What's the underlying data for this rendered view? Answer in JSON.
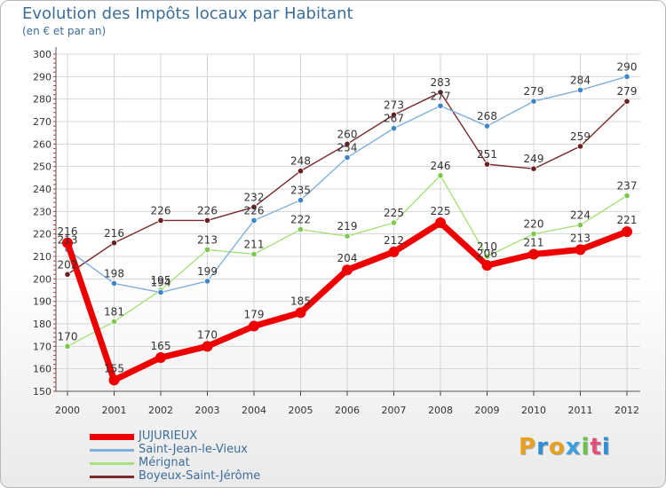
{
  "header": {
    "title": "Evolution des Impôts locaux par Habitant",
    "subtitle": "(en € et par an)"
  },
  "brand": {
    "letters": [
      "P",
      "r",
      "o",
      "x",
      "i",
      "t",
      "i"
    ],
    "colors": [
      "#e8a020",
      "#2c8fd6",
      "#e8a020",
      "#3aa0e0",
      "#6cc04a",
      "#e0507a",
      "#2c8fd6"
    ]
  },
  "chart_data": {
    "type": "line",
    "title": "Evolution des Impôts locaux par Habitant",
    "subtitle": "(en € et par an)",
    "xlabel": "",
    "ylabel": "",
    "categories": [
      "2000",
      "2001",
      "2002",
      "2003",
      "2004",
      "2005",
      "2006",
      "2007",
      "2008",
      "2009",
      "2010",
      "2011",
      "2012"
    ],
    "ylim": [
      150,
      300
    ],
    "yticks": [
      150,
      160,
      170,
      180,
      190,
      200,
      210,
      220,
      230,
      240,
      250,
      260,
      270,
      280,
      290,
      300
    ],
    "grid": true,
    "legend_position": "bottom-left",
    "series": [
      {
        "name": "Boyeux-Saint-Jérôme",
        "color": "#7a2a2a",
        "point_color": "#6b1f1f",
        "values": [
          202,
          216,
          226,
          226,
          232,
          248,
          260,
          273,
          283,
          251,
          249,
          259,
          279
        ],
        "labels": [
          "202",
          "216",
          "226",
          "226",
          "232",
          "248",
          "260",
          "273",
          "283",
          "251",
          "249",
          "259",
          "279"
        ]
      },
      {
        "name": "Mérignat",
        "color": "#a8e07a",
        "point_color": "#7dc84e",
        "values": [
          170,
          181,
          195,
          213,
          211,
          222,
          219,
          225,
          246,
          210,
          220,
          224,
          237
        ],
        "labels": [
          "170",
          "181",
          "195",
          "213",
          "211",
          "222",
          "219",
          "225",
          "246",
          "210",
          "220",
          "224",
          "237"
        ]
      },
      {
        "name": "Saint-Jean-le-Vieux",
        "color": "#7fb0dc",
        "point_color": "#3e86c8",
        "values": [
          213,
          198,
          194,
          199,
          226,
          235,
          254,
          267,
          277,
          268,
          279,
          284,
          290
        ],
        "labels": [
          "213",
          "198",
          "194",
          "199",
          "226",
          "235",
          "254",
          "267",
          "277",
          "268",
          "279",
          "284",
          "290"
        ]
      },
      {
        "name": "JUJURIEUX",
        "color": "#ee0000",
        "point_color": "#ee0000",
        "values": [
          216,
          155,
          165,
          170,
          179,
          185,
          204,
          212,
          225,
          206,
          211,
          213,
          221
        ],
        "labels": [
          "216",
          "155",
          "165",
          "170",
          "179",
          "185",
          "204",
          "212",
          "225",
          "206",
          "211",
          "213",
          "221"
        ]
      }
    ],
    "legend_order": [
      "JUJURIEUX",
      "Saint-Jean-le-Vieux",
      "Mérignat",
      "Boyeux-Saint-Jérôme"
    ]
  }
}
